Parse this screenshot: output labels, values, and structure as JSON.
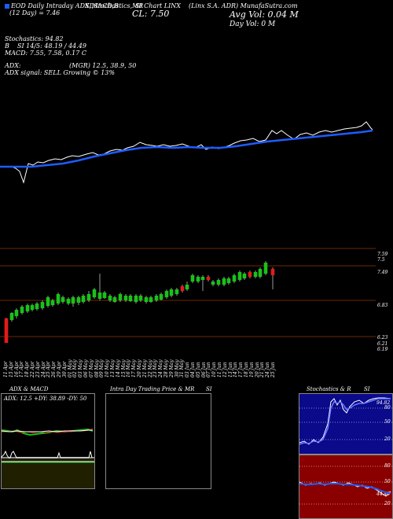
{
  "header": {
    "line1_left": "EOD Daily Intraday ADX,MACD,B",
    "line1_mid": "SI,Stochastics,MR",
    "line1_right_a": "SI Chart LINX",
    "line1_right_b": "(Linx S.A. ADR) MunafaSutra.com",
    "price_label": "CL: 7.50",
    "line2_left": "(12 Day) = 7.46",
    "avg_vol": "Avg Vol: 0.04   M",
    "day_vol": "Day Vol: 0   M"
  },
  "indicators": {
    "stoch": "Stochastics: 94.82",
    "b": "B",
    "rsi": "SI 14/5: 48.19 / 44.49",
    "macd": "MACD: 7.55, 7.58, 0.17 C",
    "adx": "ADX:",
    "mgr": "(MGR) 12.5,  38.9,  50",
    "adx_signal": "ADX  signal: SELL Growing © 13%"
  },
  "price_axis": {
    "ticks": [
      "7.59",
      "7.5",
      "7.49",
      "6.83",
      "6.23",
      "6.21",
      "6.19"
    ]
  },
  "dates": [
    "11 Apr",
    "15 Apr",
    "16 Apr",
    "17 Apr",
    "18 Apr",
    "22 Apr",
    "23 Apr",
    "24 Apr",
    "25 Apr",
    "26 Apr",
    "29 Apr",
    "30 Apr",
    "01 May",
    "02 May",
    "03 May",
    "06 May",
    "07 May",
    "08 May",
    "09 May",
    "10 May",
    "13 May",
    "14 May",
    "15 May",
    "16 May",
    "17 May",
    "20 May",
    "21 May",
    "22 May",
    "23 May",
    "24 May",
    "28 May",
    "29 May",
    "30 May",
    "31 May",
    "03 Jun",
    "04 Jun",
    "05 Jun",
    "06 Jun",
    "07 Jun",
    "10 Jun",
    "11 Jun",
    "12 Jun",
    "13 Jun",
    "14 Jun",
    "17 Jun",
    "18 Jun",
    "19 Jun",
    "20 Jun",
    "21 Jun",
    "24 Jun",
    "25 Jun"
  ],
  "panels": {
    "adx_title": "ADX  & MACD",
    "adx_value": "ADX: 12.5  +DY: 38.89  -DY: 50",
    "intra_title": "Intra  Day Trading Price  & MR",
    "intra_title_b": "SI",
    "stoch_title": "Stochastics & R",
    "stoch_title_b": "SI",
    "stoch_ticks": [
      "80",
      "50",
      "20"
    ],
    "stoch_value": "94.82",
    "rsi_ticks": [
      "80",
      "50",
      "20"
    ],
    "rsi_value": "44.49"
  },
  "colors": {
    "sma": "#1e5cff",
    "up_candle": "#19c219",
    "down_candle": "#e31b1b",
    "grid": "#6b2a00"
  }
}
